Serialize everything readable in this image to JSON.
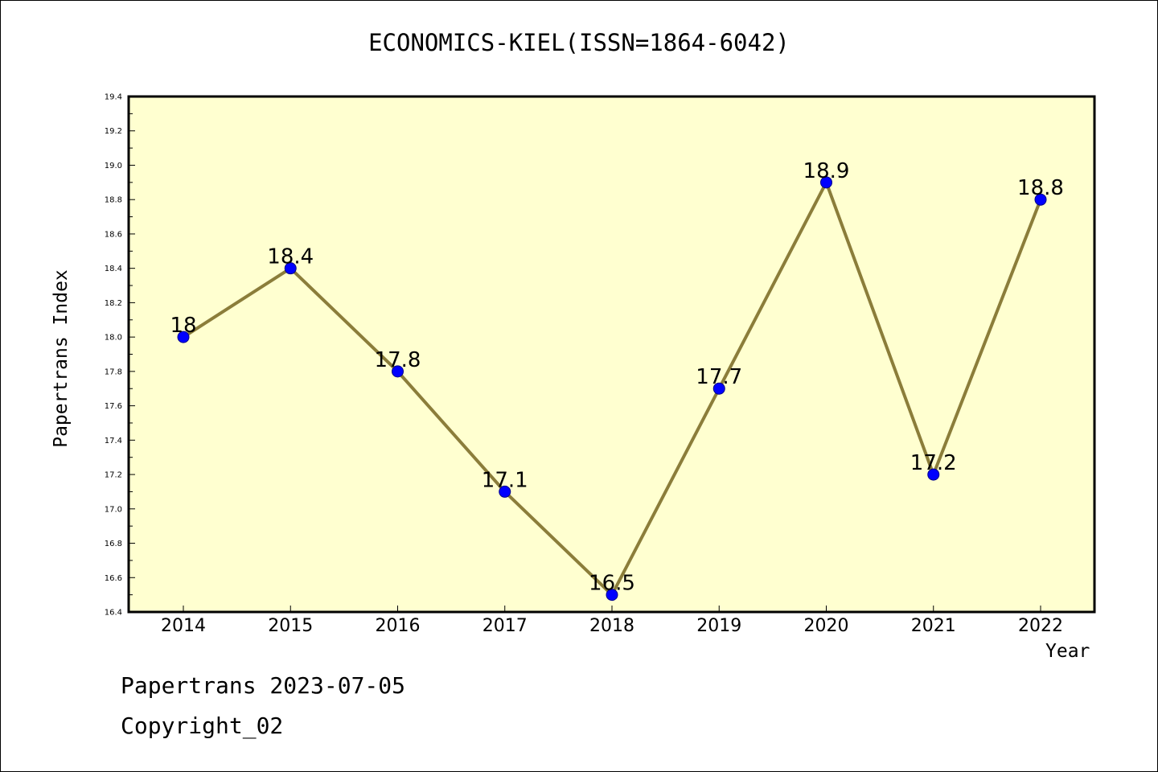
{
  "chart_data": {
    "type": "line",
    "title": "ECONOMICS-KIEL(ISSN=1864-6042)",
    "xlabel": "Year",
    "ylabel": "Papertrans Index",
    "categories": [
      "2014",
      "2015",
      "2016",
      "2017",
      "2018",
      "2019",
      "2020",
      "2021",
      "2022"
    ],
    "series": [
      {
        "values": [
          18.0,
          18.4,
          17.8,
          17.1,
          16.5,
          17.7,
          18.9,
          17.2,
          18.8
        ]
      }
    ],
    "data_labels": [
      "18",
      "18.4",
      "17.8",
      "17.1",
      "16.5",
      "17.7",
      "18.9",
      "17.2",
      "18.8"
    ],
    "ylim": [
      16.4,
      19.4
    ],
    "yticks": [
      "16.4",
      "16.6",
      "16.8",
      "17.0",
      "17.2",
      "17.4",
      "17.6",
      "17.8",
      "18.0",
      "18.2",
      "18.4",
      "18.6",
      "18.8",
      "19.0",
      "19.2",
      "19.4"
    ],
    "grid": false,
    "colors": {
      "plot_background": "#ffffd0",
      "line": "#8b7d3a",
      "marker": "#0000ff",
      "marker_edge": "#00008b"
    }
  },
  "footer": {
    "line1": "Papertrans 2023-07-05",
    "line2": "Copyright_02"
  }
}
